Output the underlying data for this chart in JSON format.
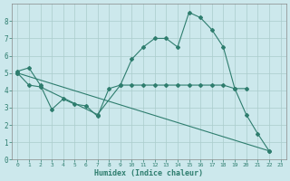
{
  "title": "",
  "xlabel": "Humidex (Indice chaleur)",
  "bg_color": "#cce8ec",
  "grid_color": "#aacccc",
  "line_color": "#2e7d6e",
  "xlim": [
    -0.5,
    23.5
  ],
  "ylim": [
    0,
    9
  ],
  "xticks": [
    0,
    1,
    2,
    3,
    4,
    5,
    6,
    7,
    8,
    9,
    10,
    11,
    12,
    13,
    14,
    15,
    16,
    17,
    18,
    19,
    20,
    21,
    22,
    23
  ],
  "yticks": [
    0,
    1,
    2,
    3,
    4,
    5,
    6,
    7,
    8
  ],
  "line1_x": [
    0,
    1,
    2,
    3,
    4,
    5,
    6,
    7,
    8,
    9,
    10,
    11,
    12,
    13,
    14,
    15,
    16,
    17,
    18,
    19,
    20,
    21,
    22
  ],
  "line1_y": [
    5.1,
    5.3,
    4.3,
    2.9,
    3.5,
    3.2,
    3.1,
    2.5,
    4.1,
    4.3,
    5.8,
    6.5,
    7.0,
    7.0,
    6.5,
    8.5,
    8.2,
    7.5,
    6.5,
    4.1,
    2.6,
    1.5,
    0.5
  ],
  "line2_x": [
    0,
    1,
    2,
    7,
    9,
    10,
    11,
    12,
    13,
    14,
    15,
    16,
    17,
    18,
    19,
    20
  ],
  "line2_y": [
    5.0,
    4.3,
    4.2,
    2.6,
    4.3,
    4.3,
    4.3,
    4.3,
    4.3,
    4.3,
    4.3,
    4.3,
    4.3,
    4.3,
    4.1,
    4.1
  ],
  "line3_x": [
    0,
    22
  ],
  "line3_y": [
    5.0,
    0.5
  ]
}
